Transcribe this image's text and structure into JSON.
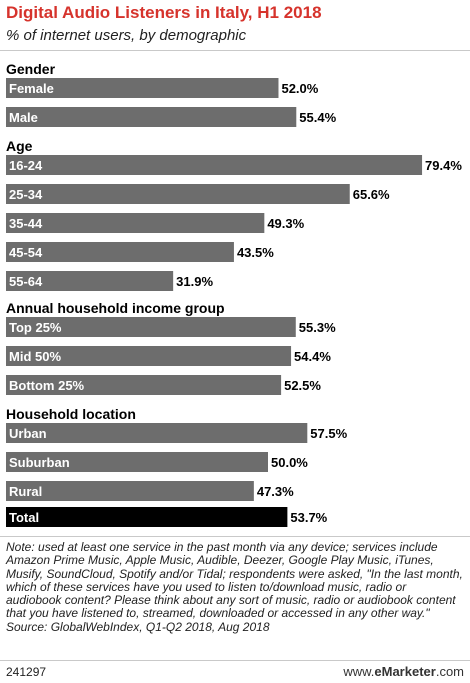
{
  "header": {
    "title": "Digital Audio Listeners in Italy, H1 2018",
    "subtitle": "% of internet users, by demographic"
  },
  "chart_data": {
    "type": "bar",
    "orientation": "horizontal",
    "title": "Digital Audio Listeners in Italy, H1 2018",
    "subtitle": "% of internet users, by demographic",
    "unit": "%",
    "colors": {
      "bar": "#6d6d6d",
      "total_bar": "#000000",
      "title": "#d6332c"
    },
    "groups": [
      {
        "name": "Gender",
        "bars": [
          {
            "label": "Female",
            "value": 52.0,
            "display": "52.0%"
          },
          {
            "label": "Male",
            "value": 55.4,
            "display": "55.4%"
          }
        ]
      },
      {
        "name": "Age",
        "bars": [
          {
            "label": "16-24",
            "value": 79.4,
            "display": "79.4%"
          },
          {
            "label": "25-34",
            "value": 65.6,
            "display": "65.6%"
          },
          {
            "label": "35-44",
            "value": 49.3,
            "display": "49.3%"
          },
          {
            "label": "45-54",
            "value": 43.5,
            "display": "43.5%"
          },
          {
            "label": "55-64",
            "value": 31.9,
            "display": "31.9%"
          }
        ]
      },
      {
        "name": "Annual household income group",
        "bars": [
          {
            "label": "Top 25%",
            "value": 55.3,
            "display": "55.3%"
          },
          {
            "label": "Mid 50%",
            "value": 54.4,
            "display": "54.4%"
          },
          {
            "label": "Bottom 25%",
            "value": 52.5,
            "display": "52.5%"
          }
        ]
      },
      {
        "name": "Household location",
        "bars": [
          {
            "label": "Urban",
            "value": 57.5,
            "display": "57.5%"
          },
          {
            "label": "Suburban",
            "value": 50.0,
            "display": "50.0%"
          },
          {
            "label": "Rural",
            "value": 47.3,
            "display": "47.3%"
          }
        ]
      }
    ],
    "total": {
      "label": "Total",
      "value": 53.7,
      "display": "53.7%"
    }
  },
  "note": "Note: used at least one service in the past month via any device; services include Amazon Prime Music, Apple Music, Audible, Deezer, Google Play Music, iTunes, Musify, SoundCloud, Spotify and/or Tidal; respondents were asked, \"In the last month, which of these services have you used to listen to/download music, radio or audiobook content? Please think about any sort of music, radio or audiobook content that you have listened to, streamed, downloaded or accessed in any other way.\"",
  "source": "Source: GlobalWebIndex, Q1-Q2 2018, Aug 2018",
  "footer": {
    "chart_id": "241297",
    "brand_prefix": "www.",
    "brand_bold": "eMarketer",
    "brand_suffix": ".com"
  }
}
